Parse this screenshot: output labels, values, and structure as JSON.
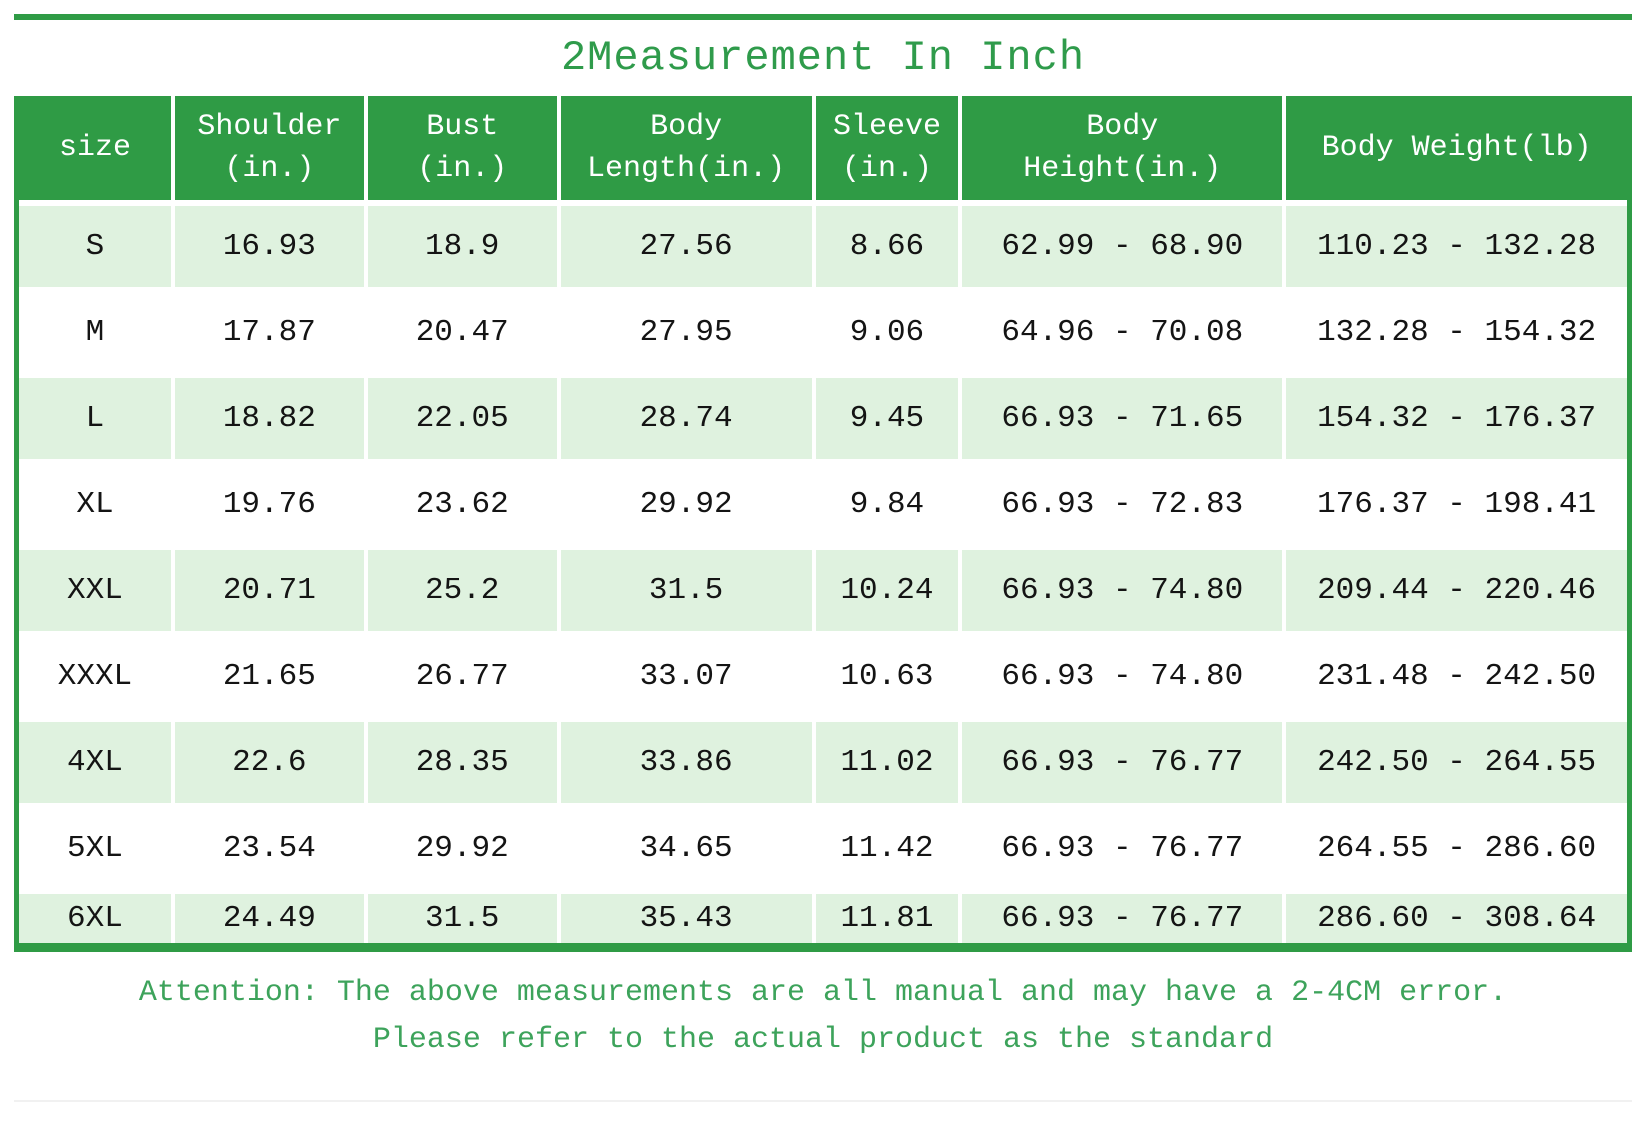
{
  "title": "2Measurement In Inch",
  "colors": {
    "green": "#2f9b45",
    "title_green": "#2f9b4b",
    "light_row_green": "#dff2df",
    "note_green": "#3da35b",
    "header_text": "#ffffff",
    "data_text": "#141414"
  },
  "table": {
    "columns": [
      {
        "key": "size",
        "lines": [
          "size"
        ]
      },
      {
        "key": "shoulder",
        "lines": [
          "Shoulder",
          "(in.)"
        ]
      },
      {
        "key": "bust",
        "lines": [
          "Bust",
          "(in.)"
        ]
      },
      {
        "key": "body-length",
        "lines": [
          "Body",
          "Length(in.)"
        ]
      },
      {
        "key": "sleeve",
        "lines": [
          "Sleeve",
          "(in.)"
        ]
      },
      {
        "key": "body-height",
        "lines": [
          "Body",
          "Height(in.)"
        ]
      },
      {
        "key": "body-weight",
        "lines": [
          "Body Weight(lb)"
        ]
      }
    ],
    "rows": [
      [
        "S",
        "16.93",
        "18.9",
        "27.56",
        "8.66",
        "62.99 - 68.90",
        "110.23 - 132.28"
      ],
      [
        "M",
        "17.87",
        "20.47",
        "27.95",
        "9.06",
        "64.96 - 70.08",
        "132.28 - 154.32"
      ],
      [
        "L",
        "18.82",
        "22.05",
        "28.74",
        "9.45",
        "66.93 - 71.65",
        "154.32 - 176.37"
      ],
      [
        "XL",
        "19.76",
        "23.62",
        "29.92",
        "9.84",
        "66.93 - 72.83",
        "176.37 - 198.41"
      ],
      [
        "XXL",
        "20.71",
        "25.2",
        "31.5",
        "10.24",
        "66.93 - 74.80",
        "209.44 - 220.46"
      ],
      [
        "XXXL",
        "21.65",
        "26.77",
        "33.07",
        "10.63",
        "66.93 - 74.80",
        "231.48 - 242.50"
      ],
      [
        "4XL",
        "22.6",
        "28.35",
        "33.86",
        "11.02",
        "66.93 - 76.77",
        "242.50 - 264.55"
      ],
      [
        "5XL",
        "23.54",
        "29.92",
        "34.65",
        "11.42",
        "66.93 - 76.77",
        "264.55 - 286.60"
      ],
      [
        "6XL",
        "24.49",
        "31.5",
        "35.43",
        "11.81",
        "66.93 - 76.77",
        "286.60 - 308.64"
      ]
    ]
  },
  "notes": {
    "line1": "Attention: The above measurements are all manual and may have a 2-4CM error.",
    "line2": "Please refer to the actual product as the standard"
  }
}
